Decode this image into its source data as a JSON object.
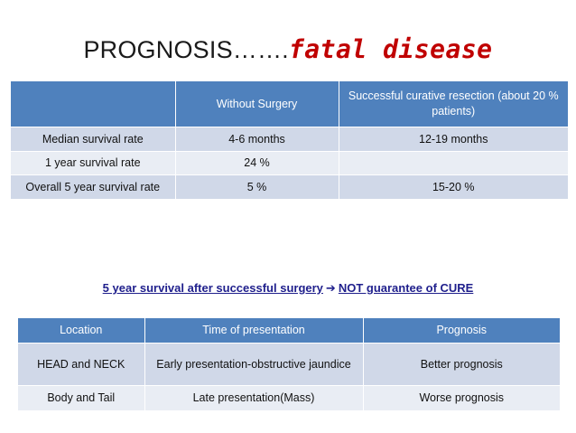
{
  "title": {
    "main": "PROGNOSIS…….",
    "accent": "fatal disease"
  },
  "table1": {
    "headers": [
      "",
      "Without Surgery",
      "Successful curative resection (about 20 % patients)"
    ],
    "rows": [
      [
        "Median survival rate",
        "4-6 months",
        "12-19 months"
      ],
      [
        "1 year survival rate",
        "24 %",
        ""
      ],
      [
        "Overall 5 year survival rate",
        "5 %",
        "15-20 %"
      ]
    ]
  },
  "note": {
    "left": "5 year survival after successful surgery",
    "arrow": "➔",
    "right": "NOT guarantee of CURE"
  },
  "table2": {
    "headers": [
      "Location",
      "Time of presentation",
      "Prognosis"
    ],
    "rows": [
      [
        "HEAD and NECK",
        "Early presentation-obstructive jaundice",
        "Better prognosis"
      ],
      [
        "Body and Tail",
        "Late presentation(Mass)",
        "Worse prognosis"
      ]
    ]
  },
  "colors": {
    "header_bg": "#4f81bd",
    "row_dark": "#d0d8e8",
    "row_light": "#e9edf4",
    "accent_red": "#c00000",
    "note_blue": "#1f1f8c"
  }
}
